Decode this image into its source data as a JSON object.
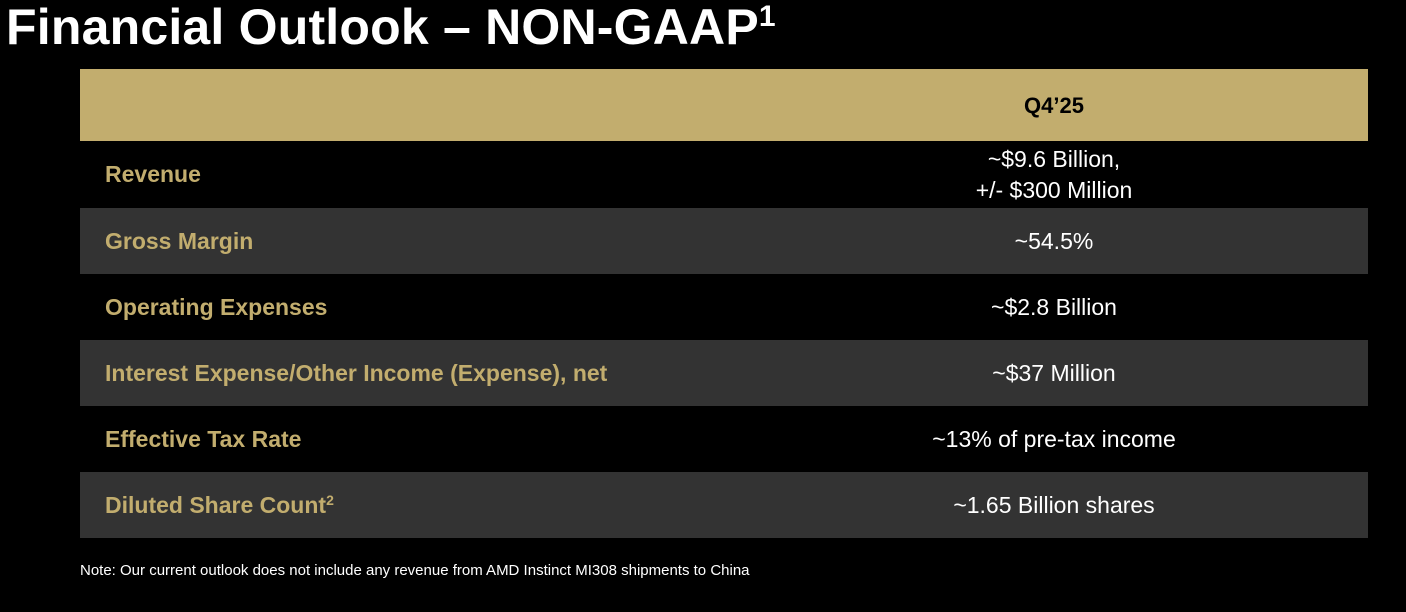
{
  "title": {
    "text": "Financial Outlook – NON-GAAP",
    "sup": "1"
  },
  "colors": {
    "background": "#000000",
    "accent": "#c2ad6e",
    "band": "#333333",
    "text": "#ffffff"
  },
  "table": {
    "header": "Q4’25",
    "rows": [
      {
        "label": "Revenue",
        "value_line1": "~$9.6 Billion,",
        "value_line2": "+/- $300 Million"
      },
      {
        "label": "Gross Margin",
        "value": "~54.5%"
      },
      {
        "label": "Operating Expenses",
        "value": "~$2.8 Billion"
      },
      {
        "label": "Interest Expense/Other Income (Expense), net",
        "value": "~$37 Million"
      },
      {
        "label": "Effective Tax Rate",
        "value": "~13% of pre-tax income"
      },
      {
        "label": "Diluted Share Count",
        "label_sup": "2",
        "value": "~1.65 Billion shares"
      }
    ]
  },
  "note": "Note: Our current outlook does not include any revenue from AMD Instinct MI308 shipments to China"
}
